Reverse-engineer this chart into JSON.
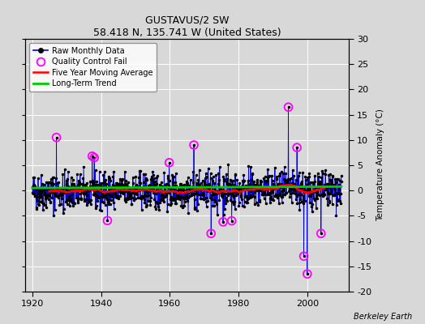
{
  "title": "GUSTAVUS/2 SW",
  "subtitle": "58.418 N, 135.741 W (United States)",
  "ylabel": "Temperature Anomaly (°C)",
  "credit": "Berkeley Earth",
  "xlim": [
    1918,
    2012
  ],
  "ylim": [
    -20,
    30
  ],
  "yticks": [
    -20,
    -15,
    -10,
    -5,
    0,
    5,
    10,
    15,
    20,
    25,
    30
  ],
  "xticks": [
    1920,
    1940,
    1960,
    1980,
    2000
  ],
  "background_color": "#d8d8d8",
  "plot_bg_color": "#d8d8d8",
  "raw_line_color": "#0000dd",
  "raw_marker_color": "#000000",
  "qc_fail_color": "#ff00ff",
  "moving_avg_color": "#ff0000",
  "trend_color": "#00cc00",
  "seed": 42
}
